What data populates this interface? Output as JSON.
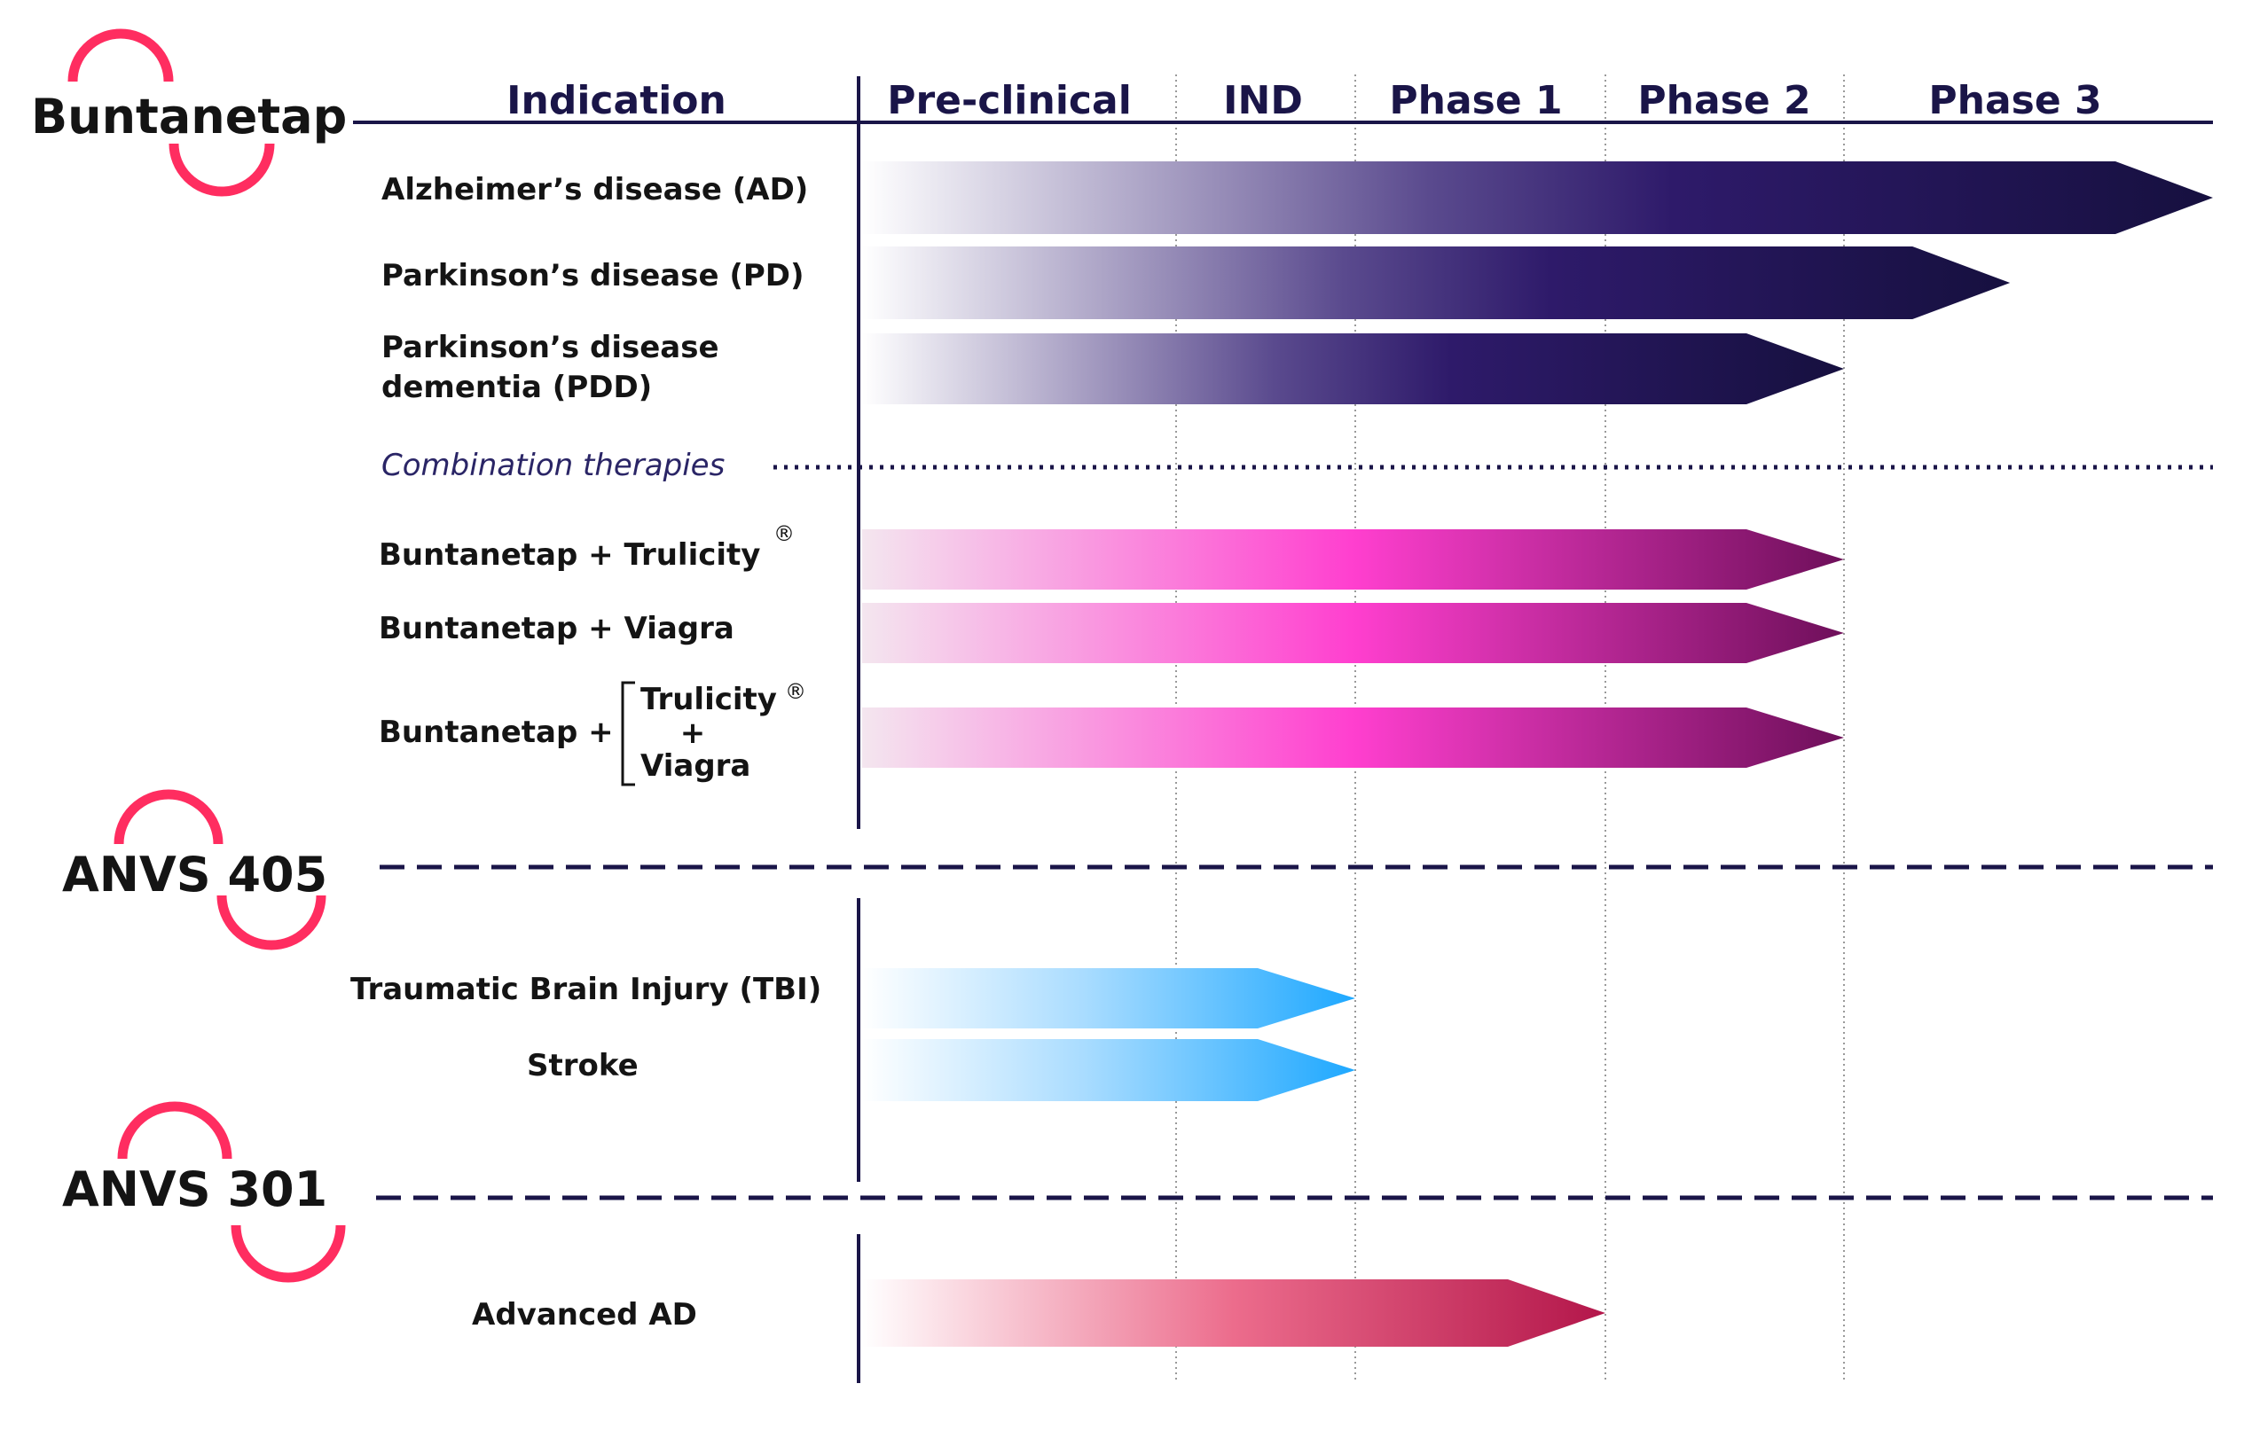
{
  "header": {
    "indication_label": "Indication",
    "phases": [
      "Pre-clinical",
      "IND",
      "Phase 1",
      "Phase 2",
      "Phase 3"
    ]
  },
  "programs": {
    "buntanetap": {
      "name": "Buntanetap",
      "indications": [
        {
          "label": "Alzheimer’s disease (AD)",
          "progress_phase": 5
        },
        {
          "label": "Parkinson’s disease (PD)",
          "progress_phase": 4.45
        },
        {
          "label_line1": "Parkinson’s disease",
          "label_line2": "dementia (PDD)",
          "progress_phase": 4
        }
      ],
      "combination_label": "Combination therapies",
      "combinations": [
        {
          "label": "Buntanetap + Trulicity",
          "mark": "®",
          "progress_phase": 4
        },
        {
          "label": "Buntanetap + Viagra",
          "progress_phase": 4
        },
        {
          "label_prefix": "Buntanetap +",
          "item1": "Trulicity",
          "mark": "®",
          "plus": "+",
          "item2": "Viagra",
          "progress_phase": 4
        }
      ]
    },
    "anvs405": {
      "name": "ANVS 405",
      "indications": [
        {
          "label": "Traumatic Brain Injury (TBI)",
          "progress_phase": 2
        },
        {
          "label": "Stroke",
          "progress_phase": 2
        }
      ]
    },
    "anvs301": {
      "name": "ANVS 301",
      "indications": [
        {
          "label": "Advanced AD",
          "progress_phase": 3
        }
      ]
    }
  },
  "colors": {
    "navy": "#1a1548",
    "logo_arc": "#ff2d60",
    "purple_dark": "#16103f",
    "purple_mid": "#2e1a6a",
    "pink_bright": "#ff3fcf",
    "pink_dark": "#6e0f5a",
    "blue": "#1ea8ff",
    "crimson": "#b3164a"
  }
}
